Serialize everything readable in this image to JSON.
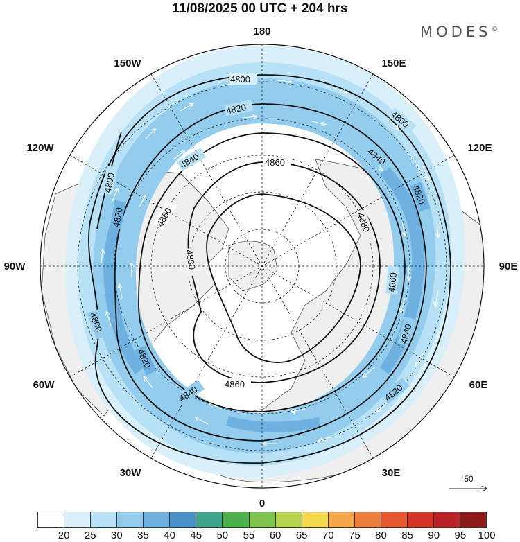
{
  "title": "11/08/2025  00 UTC  + 204 hrs",
  "brand": "MODES",
  "brand_mark": "©",
  "longitude_labels": [
    {
      "text": "180",
      "lon": 180
    },
    {
      "text": "150E",
      "lon": 150
    },
    {
      "text": "120E",
      "lon": 120
    },
    {
      "text": "90E",
      "lon": 90
    },
    {
      "text": "60E",
      "lon": 60
    },
    {
      "text": "30E",
      "lon": 30
    },
    {
      "text": "0",
      "lon": 0
    },
    {
      "text": "30W",
      "lon": -30
    },
    {
      "text": "60W",
      "lon": -60
    },
    {
      "text": "90W",
      "lon": -90
    },
    {
      "text": "120W",
      "lon": -120
    },
    {
      "text": "150W",
      "lon": -150
    }
  ],
  "contours": [
    {
      "value": "4800",
      "labels": [
        "4800",
        "4800",
        "4800",
        "4800"
      ]
    },
    {
      "value": "4820",
      "labels": [
        "4820",
        "4820",
        "4820",
        "4820",
        "4820"
      ]
    },
    {
      "value": "4840",
      "labels": [
        "4840",
        "4840",
        "4840",
        "4840"
      ]
    },
    {
      "value": "4860",
      "labels": [
        "4860",
        "4860",
        "4860",
        "4860"
      ]
    },
    {
      "value": "4880",
      "labels": [
        "4880",
        "4880"
      ]
    }
  ],
  "colorbar": {
    "labels": [
      "20",
      "25",
      "30",
      "35",
      "40",
      "45",
      "50",
      "55",
      "60",
      "65",
      "70",
      "75",
      "80",
      "85",
      "90",
      "95",
      "100"
    ],
    "colors": [
      "#ffffff",
      "#d9effa",
      "#b8e1f5",
      "#93ccec",
      "#6eb0df",
      "#4a90c9",
      "#3fa58c",
      "#4cb04c",
      "#7dc24a",
      "#b7d24b",
      "#f4d84b",
      "#f5a84a",
      "#f07f3c",
      "#e45530",
      "#d33528",
      "#b92226",
      "#8e1b1c"
    ]
  },
  "reference_vector": {
    "label": "50"
  }
}
